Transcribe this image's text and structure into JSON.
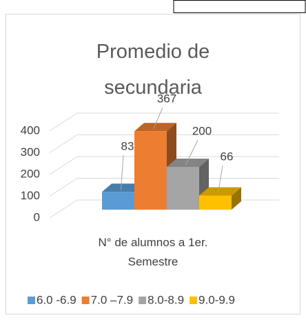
{
  "chart_data": {
    "type": "bar3d",
    "title": "Promedio de secundaria",
    "categories": [
      "N° de alumnos a 1er. Semestre"
    ],
    "series": [
      {
        "name": "6.0 -6.9",
        "color": "#5b9bd5",
        "values": [
          83
        ]
      },
      {
        "name": "7.0 –7.9",
        "color": "#ed7d31",
        "values": [
          367
        ]
      },
      {
        "name": "8.0-8.9",
        "color": "#a5a5a5",
        "values": [
          200
        ]
      },
      {
        "name": "9.0-9.9",
        "color": "#ffc000",
        "values": [
          66
        ]
      }
    ],
    "ylim": [
      0,
      400
    ],
    "yticks": [
      0,
      100,
      200,
      300,
      400
    ],
    "grid": true,
    "legend": "bottom"
  }
}
